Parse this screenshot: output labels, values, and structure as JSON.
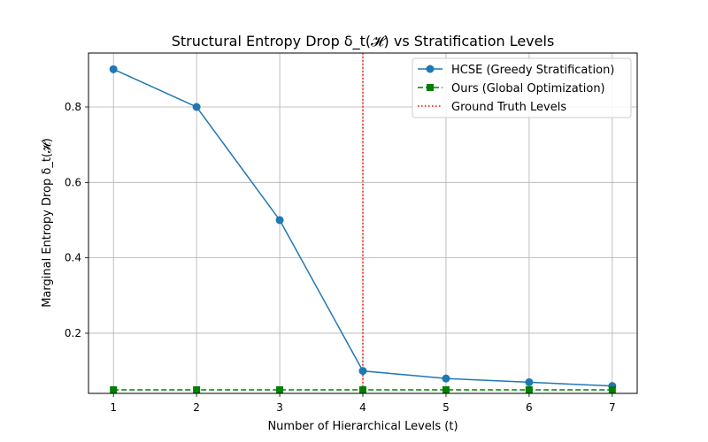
{
  "chart_data": {
    "type": "line",
    "title": "Structural Entropy Drop δ_t(𝓗) vs Stratification Levels",
    "xlabel": "Number of Hierarchical Levels (t)",
    "ylabel": "Marginal Entropy Drop δ_t(𝓗)",
    "x": [
      1,
      2,
      3,
      4,
      5,
      6,
      7
    ],
    "xlim": [
      0.7,
      7.3
    ],
    "ylim": [
      0.0405,
      0.943
    ],
    "x_ticks": [
      "1",
      "2",
      "3",
      "4",
      "5",
      "6",
      "7"
    ],
    "y_ticks": [
      {
        "value": 0.2,
        "label": "0.2"
      },
      {
        "value": 0.4,
        "label": "0.4"
      },
      {
        "value": 0.6,
        "label": "0.6"
      },
      {
        "value": 0.8,
        "label": "0.8"
      }
    ],
    "grid": true,
    "legend_position": "top-right",
    "series": [
      {
        "name": "HCSE (Greedy Stratification)",
        "values": [
          0.9,
          0.8,
          0.5,
          0.1,
          0.08,
          0.07,
          0.06
        ],
        "color": "#1f77b4",
        "line_style": "solid",
        "marker": "circle"
      },
      {
        "name": "Ours (Global Optimization)",
        "values": [
          0.05,
          0.05,
          0.05,
          0.05,
          0.05,
          0.05,
          0.05
        ],
        "color": "#008000",
        "line_style": "dashed",
        "marker": "square"
      }
    ],
    "vertical_lines": [
      {
        "name": "Ground Truth Levels",
        "x": 4,
        "color": "#ff0000",
        "line_style": "dotted"
      }
    ]
  }
}
